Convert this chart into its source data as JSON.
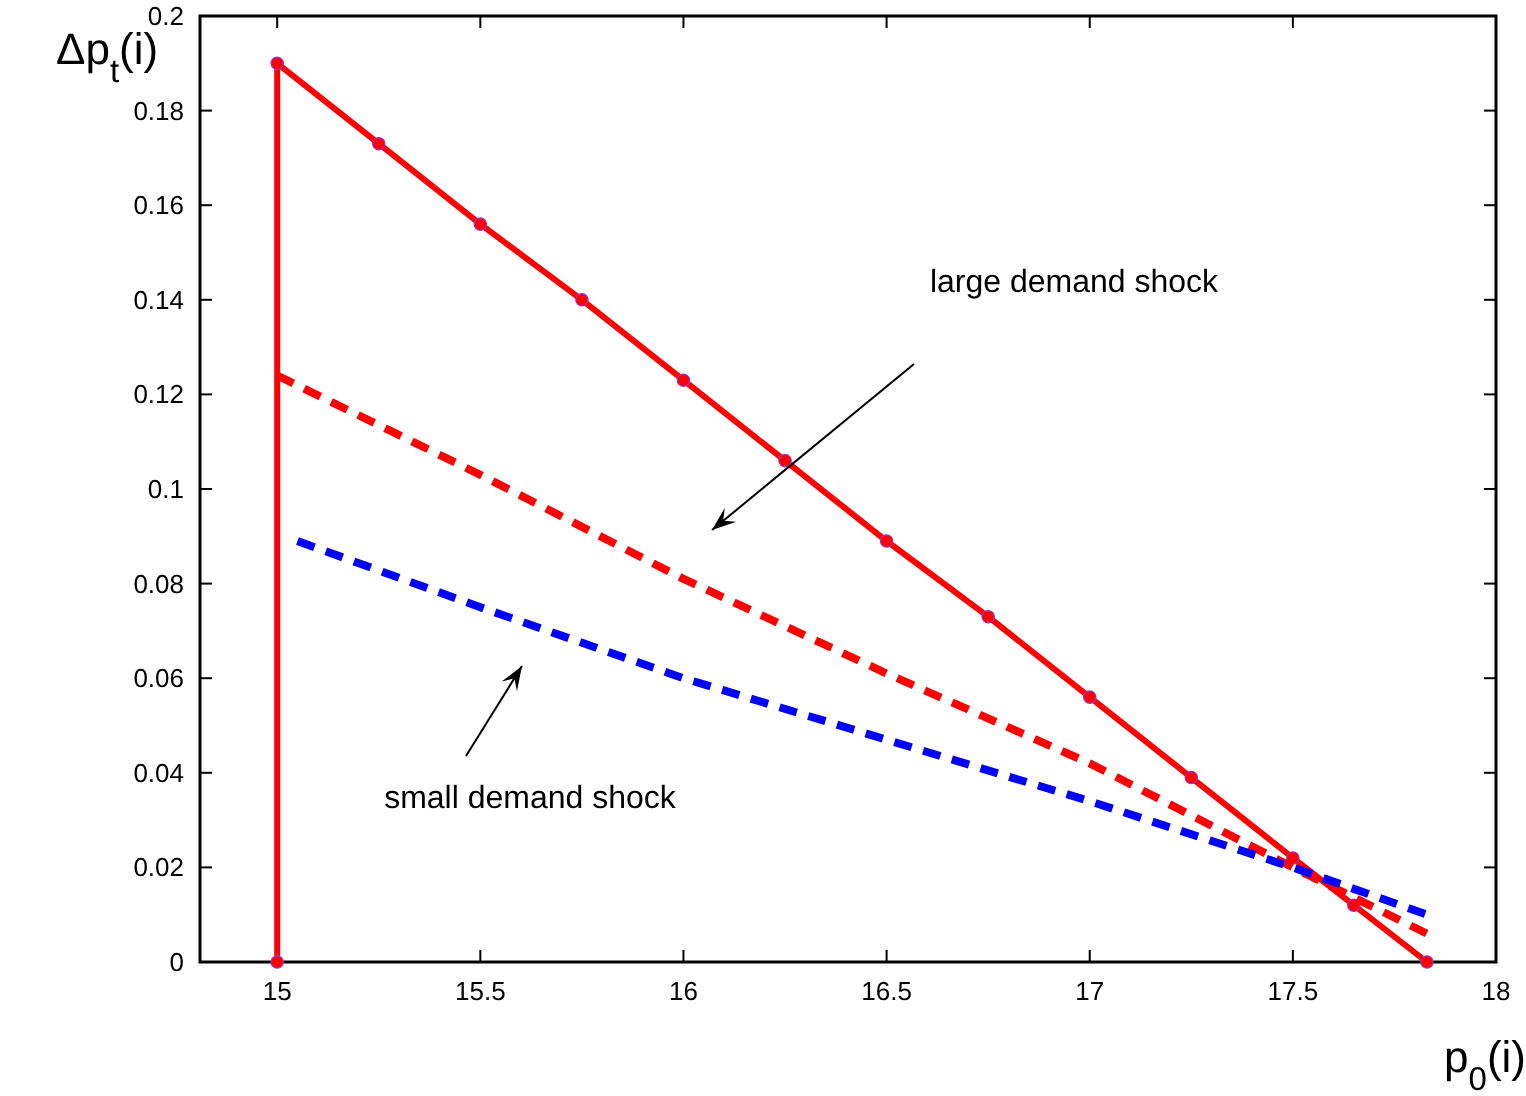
{
  "chart_data": {
    "type": "line",
    "xlabel": "p$_{0}$(i)",
    "ylabel": "Δp$_{t}$(i)",
    "xlim": [
      14.81,
      18
    ],
    "xticks": [
      15,
      15.5,
      16,
      16.5,
      17,
      17.5,
      18
    ],
    "ylim": [
      0,
      0.2
    ],
    "yticks": [
      0,
      0.02,
      0.04,
      0.06,
      0.08,
      0.1,
      0.12,
      0.14,
      0.16,
      0.18,
      0.2
    ],
    "grid": false,
    "series": [
      {
        "color": "#ff0000",
        "marker": "circle",
        "line_style": "solid",
        "x": [
          15,
          15,
          15.25,
          15.5,
          15.75,
          16,
          16.25,
          16.5,
          16.75,
          17,
          17.25,
          17.5,
          17.65,
          17.83
        ],
        "values": [
          0,
          0.19,
          0.173,
          0.156,
          0.14,
          0.123,
          0.106,
          0.089,
          0.073,
          0.056,
          0.039,
          0.022,
          0.012,
          0
        ]
      },
      {
        "color": "#ff0000",
        "marker": "none",
        "line_style": "dashed",
        "x": [
          15,
          15.5,
          16,
          16.5,
          17,
          17.5,
          17.83
        ],
        "values": [
          0.124,
          0.103,
          0.081,
          0.061,
          0.042,
          0.02,
          0.006
        ]
      },
      {
        "color": "#0000ff",
        "marker": "none",
        "line_style": "dashed",
        "x": [
          15.05,
          15.5,
          16,
          16.5,
          17,
          17.5,
          17.83
        ],
        "values": [
          0.089,
          0.075,
          0.06,
          0.047,
          0.034,
          0.02,
          0.01
        ]
      }
    ],
    "annotations": [
      "large demand shock",
      "small demand shock"
    ]
  }
}
